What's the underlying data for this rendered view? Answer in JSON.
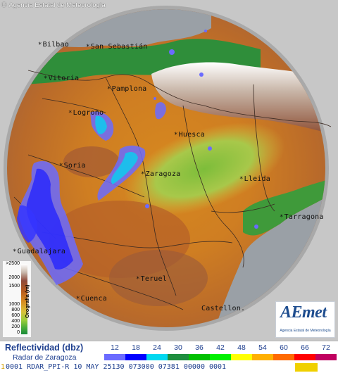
{
  "copyright": "Agencia Estatal de Meteorología",
  "copyright_symbol": "©",
  "cities": [
    {
      "name": "Bilbao"
    },
    {
      "name": "San Sebastián"
    },
    {
      "name": "Vitoria"
    },
    {
      "name": "Pamplona"
    },
    {
      "name": "Logroño"
    },
    {
      "name": "Huesca"
    },
    {
      "name": "Soria"
    },
    {
      "name": "Zaragoza"
    },
    {
      "name": "Lleida"
    },
    {
      "name": "Tarragona"
    },
    {
      "name": "Guadalajara"
    },
    {
      "name": "Teruel"
    },
    {
      "name": "Cuenca"
    },
    {
      "name": "Castellon."
    }
  ],
  "city_marker": "*",
  "orography_legend": {
    "title": "Orografía (m)",
    "levels": [
      ">2500",
      "2000",
      "1500",
      "1000",
      "800",
      "600",
      "400",
      "200",
      "0"
    ]
  },
  "logo": {
    "text": "AEmet",
    "subtitle": "Agencia Estatal de Meteorología"
  },
  "legend": {
    "title": "Reflectividad (dbz)",
    "subtitle": "Radar de Zaragoza",
    "levels": [
      {
        "label": "12",
        "color": "#6b6bff"
      },
      {
        "label": "18",
        "color": "#0000ff"
      },
      {
        "label": "24",
        "color": "#00d8f0"
      },
      {
        "label": "30",
        "color": "#1e8e3e"
      },
      {
        "label": "36",
        "color": "#00c000"
      },
      {
        "label": "42",
        "color": "#00f000"
      },
      {
        "label": "48",
        "color": "#ffff00"
      },
      {
        "label": "54",
        "color": "#ffb000"
      },
      {
        "label": "60",
        "color": "#ff6a00"
      },
      {
        "label": "66",
        "color": "#ff0000"
      },
      {
        "label": "72",
        "color": "#c00060"
      }
    ]
  },
  "status": {
    "index": "1",
    "text": "0001 RDAR_PPI-R  10 MAY 25130 073000 07381 00000 0001",
    "highlight_color": "#f0d000"
  }
}
